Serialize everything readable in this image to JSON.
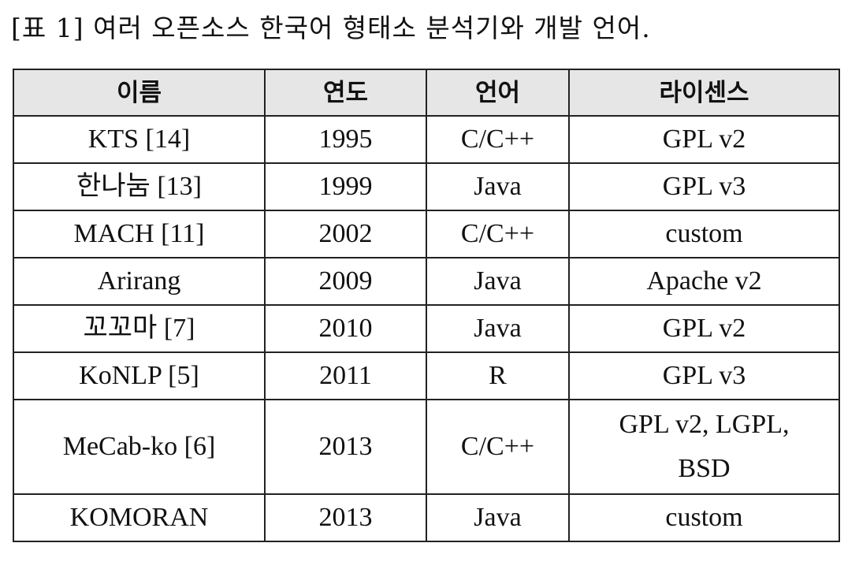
{
  "caption": "[표 1] 여러 오픈소스 한국어 형태소 분석기와 개발 언어.",
  "table": {
    "headers": [
      "이름",
      "연도",
      "언어",
      "라이센스"
    ],
    "rows": [
      {
        "name": "KTS [14]",
        "year": "1995",
        "lang": "C/C++",
        "license": "GPL v2"
      },
      {
        "name": "한나눔 [13]",
        "year": "1999",
        "lang": "Java",
        "license": "GPL v3"
      },
      {
        "name": "MACH [11]",
        "year": "2002",
        "lang": "C/C++",
        "license": "custom"
      },
      {
        "name": "Arirang",
        "year": "2009",
        "lang": "Java",
        "license": "Apache v2"
      },
      {
        "name": "꼬꼬마 [7]",
        "year": "2010",
        "lang": "Java",
        "license": "GPL v2"
      },
      {
        "name": "KoNLP [5]",
        "year": "2011",
        "lang": "R",
        "license": "GPL v3"
      },
      {
        "name": "MeCab-ko [6]",
        "year": "2013",
        "lang": "C/C++",
        "license_lines": [
          "GPL v2, LGPL,",
          "BSD"
        ]
      },
      {
        "name": "KOMORAN",
        "year": "2013",
        "lang": "Java",
        "license": "custom"
      }
    ]
  }
}
